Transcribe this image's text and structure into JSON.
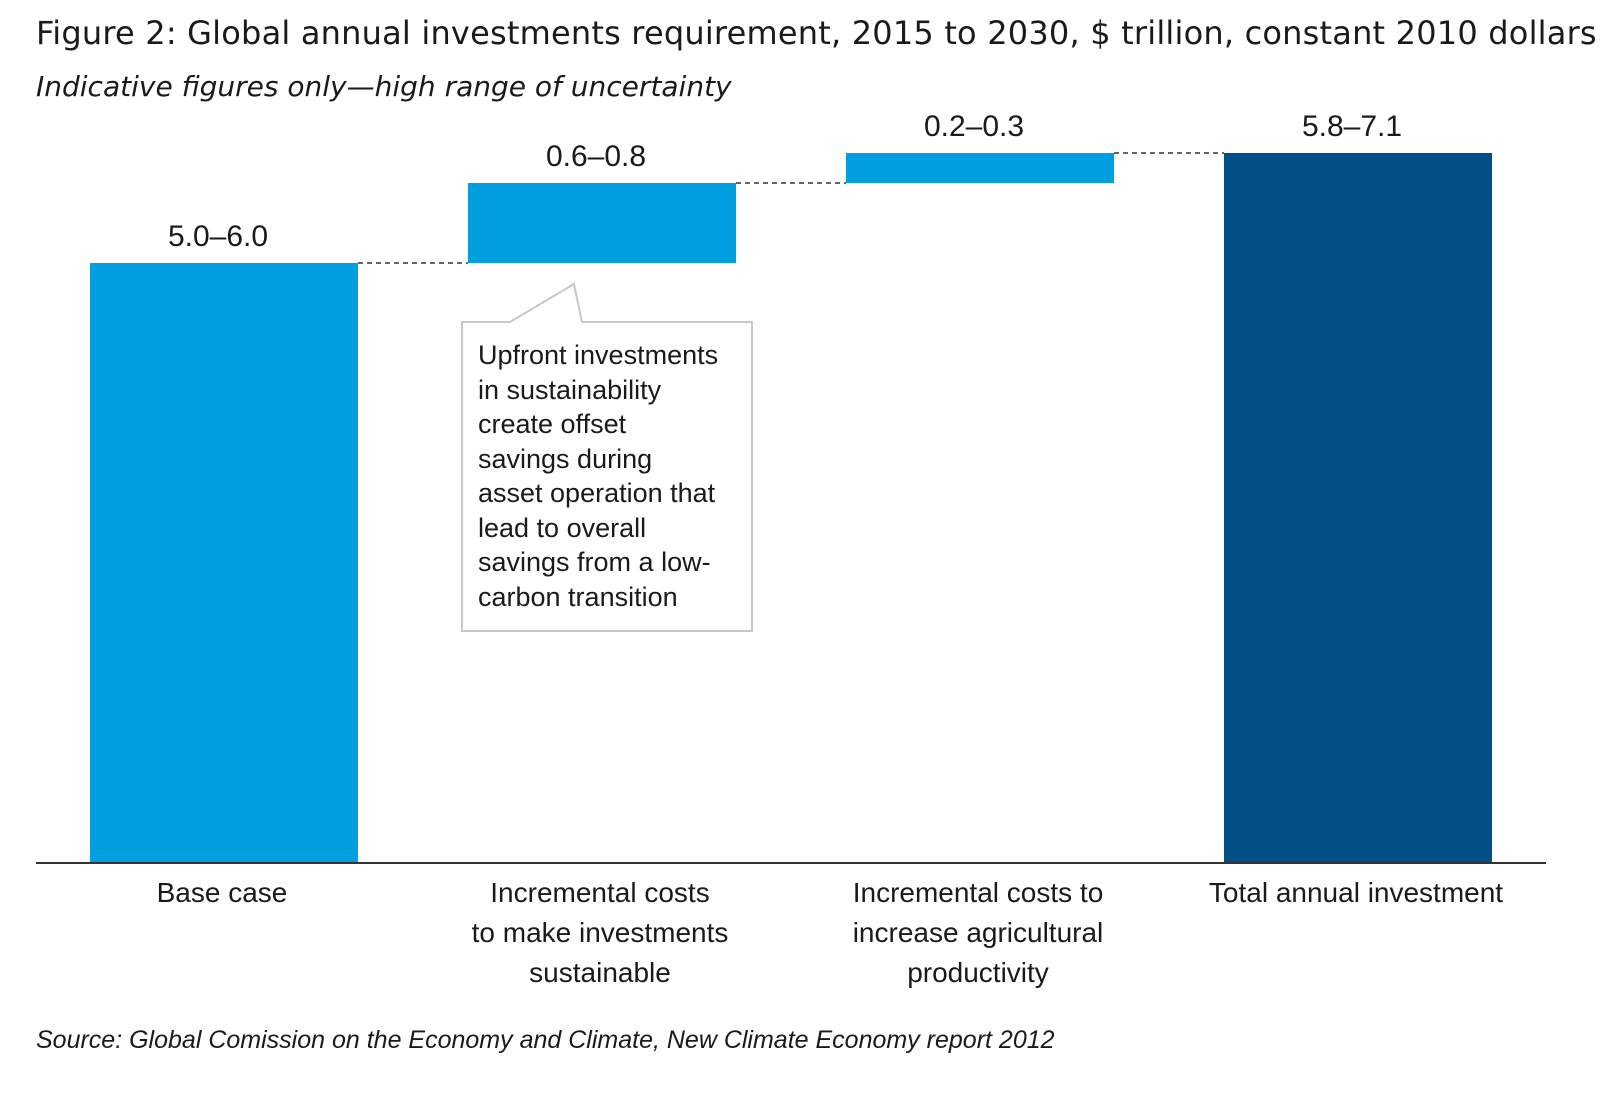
{
  "title": "Figure 2: Global annual investments requirement, 2015 to 2030, $ trillion, constant 2010 dollars",
  "subtitle": "Indicative figures only—high range of uncertainty",
  "source": "Source: Global Comission on the Economy and Climate, New Climate Economy report 2012",
  "callout": {
    "lines": [
      "Upfront investments",
      "in sustainability",
      "create offset",
      "savings during",
      "asset operation that",
      "lead to overall",
      "savings from a low-",
      "carbon transition"
    ]
  },
  "chart_data": {
    "type": "bar",
    "subtype": "waterfall",
    "unit": "$ trillion, constant 2010 dollars",
    "categories": [
      [
        "Base case"
      ],
      [
        "Incremental costs",
        "to make investments",
        "sustainable"
      ],
      [
        "Incremental costs to",
        "increase agricultural",
        "productivity"
      ],
      [
        "Total annual investment"
      ]
    ],
    "ranges": [
      "5.0–6.0",
      "0.6–0.8",
      "0.2–0.3",
      "5.8–7.1"
    ],
    "bars": [
      {
        "base": 0,
        "value": 6.0,
        "kind": "base"
      },
      {
        "base": 6.0,
        "value": 0.8,
        "kind": "increment"
      },
      {
        "base": 6.8,
        "value": 0.3,
        "kind": "increment"
      },
      {
        "base": 0,
        "value": 7.1,
        "kind": "total"
      }
    ],
    "grid": false,
    "legend": "none",
    "colors": {
      "light": "#00a0e0",
      "dark": "#004f86",
      "connector": "#333333",
      "axis": "#333333"
    }
  }
}
